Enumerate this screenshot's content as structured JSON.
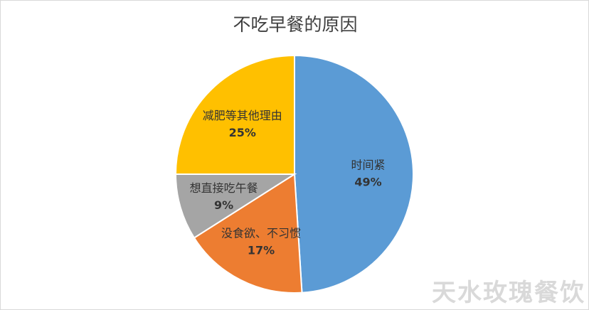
{
  "chart_data": {
    "type": "pie",
    "title": "不吃早餐的原因",
    "categories": [
      "时间紧",
      "没食欲、不习惯",
      "想直接吃午餐",
      "减肥等其他理由"
    ],
    "values": [
      49,
      17,
      9,
      25
    ],
    "percent_labels": [
      "49%",
      "17%",
      "9%",
      "25%"
    ],
    "colors": [
      "#5b9bd5",
      "#ed7d31",
      "#a5a5a5",
      "#ffc000"
    ],
    "start_angle_deg": 0,
    "direction": "clockwise",
    "legend": "none",
    "data_labels": "inside"
  },
  "watermark": "天水玫瑰餐饮"
}
